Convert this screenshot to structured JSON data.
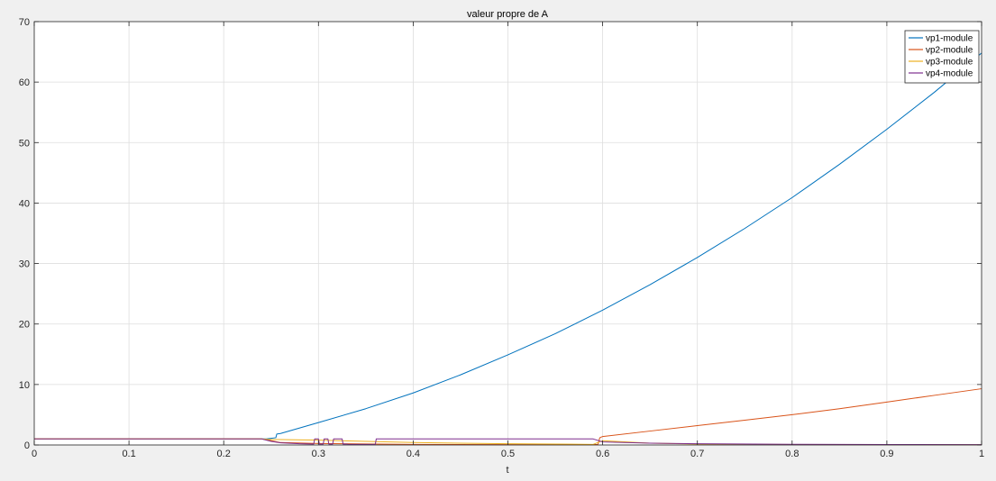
{
  "chart_data": {
    "type": "line",
    "title": "valeur propre de A",
    "xlabel": "t",
    "ylabel": "",
    "xlim": [
      0,
      1
    ],
    "ylim": [
      0,
      70
    ],
    "xticks": [
      0,
      0.1,
      0.2,
      0.3,
      0.4,
      0.5,
      0.6,
      0.7,
      0.8,
      0.9,
      1
    ],
    "xtick_labels": [
      "0",
      "0.1",
      "0.2",
      "0.3",
      "0.4",
      "0.5",
      "0.6",
      "0.7",
      "0.8",
      "0.9",
      "1"
    ],
    "yticks": [
      0,
      10,
      20,
      30,
      40,
      50,
      60,
      70
    ],
    "ytick_labels": [
      "0",
      "10",
      "20",
      "30",
      "40",
      "50",
      "60",
      "70"
    ],
    "grid": true,
    "legend_position": "top-right",
    "series": [
      {
        "name": "vp1-module",
        "color": "#0072bd",
        "x": [
          0,
          0.245,
          0.25,
          0.255,
          0.256,
          0.26,
          0.3,
          0.35,
          0.4,
          0.45,
          0.5,
          0.55,
          0.6,
          0.65,
          0.7,
          0.75,
          0.8,
          0.85,
          0.9,
          0.95,
          1.0
        ],
        "y": [
          1.0,
          1.0,
          1.1,
          1.2,
          1.8,
          1.9,
          3.7,
          6.0,
          8.6,
          11.6,
          14.9,
          18.4,
          22.3,
          26.5,
          31.0,
          35.8,
          40.9,
          46.4,
          52.2,
          58.3,
          64.8
        ]
      },
      {
        "name": "vp2-module",
        "color": "#d95319",
        "x": [
          0,
          0.24,
          0.25,
          0.26,
          0.3,
          0.4,
          0.5,
          0.59,
          0.595,
          0.597,
          0.6,
          0.65,
          0.7,
          0.75,
          0.8,
          0.85,
          0.9,
          0.95,
          1.0
        ],
        "y": [
          1.0,
          1.0,
          0.7,
          0.4,
          0.25,
          0.1,
          0.05,
          0.05,
          0.1,
          1.2,
          1.4,
          2.3,
          3.2,
          4.1,
          5.0,
          6.0,
          7.1,
          8.2,
          9.3
        ]
      },
      {
        "name": "vp3-module",
        "color": "#edb120",
        "x": [
          0,
          0.24,
          0.25,
          0.26,
          0.3,
          0.35,
          0.4,
          0.5,
          0.59,
          0.6,
          0.65,
          0.7,
          0.8,
          0.9,
          1.0
        ],
        "y": [
          1.0,
          1.0,
          0.9,
          0.9,
          0.8,
          0.6,
          0.4,
          0.2,
          0.1,
          0.7,
          0.3,
          0.15,
          0.08,
          0.05,
          0.04
        ]
      },
      {
        "name": "vp4-module",
        "color": "#7e2f8e",
        "x": [
          0,
          0.24,
          0.25,
          0.26,
          0.28,
          0.295,
          0.296,
          0.3,
          0.301,
          0.305,
          0.306,
          0.31,
          0.311,
          0.315,
          0.316,
          0.325,
          0.326,
          0.33,
          0.331,
          0.36,
          0.361,
          0.365,
          0.366,
          0.58,
          0.59,
          0.6,
          0.65,
          0.7,
          0.8,
          0.9,
          1.0
        ],
        "y": [
          1.0,
          1.0,
          0.6,
          0.35,
          0.2,
          0.15,
          1.0,
          1.0,
          0.15,
          0.15,
          1.0,
          1.0,
          0.15,
          0.15,
          1.0,
          1.0,
          0.15,
          0.15,
          0.1,
          0.1,
          1.0,
          1.0,
          1.0,
          1.0,
          1.0,
          0.5,
          0.3,
          0.2,
          0.12,
          0.08,
          0.06
        ]
      }
    ]
  }
}
